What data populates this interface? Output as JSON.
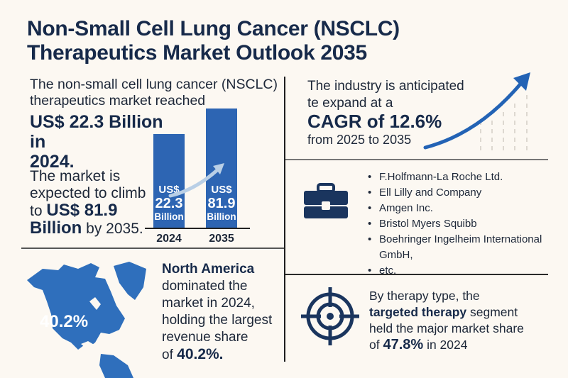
{
  "title": {
    "line1": "Non-Small Cell Lung Cancer (NSCLC)",
    "line2": "Therapeutics Market Outlook 2035"
  },
  "market_size": {
    "intro_line1": "The non-small cell lung cancer (NSCLC)",
    "intro_line2": "therapeutics market reached",
    "value_line1": "US$ 22.3 Billion in",
    "value_line2": "2024.",
    "climb_line1": "The market is",
    "climb_line2": "expected to climb",
    "climb_to": "to",
    "climb_value": "US$ 81.9",
    "climb_billion": "Billion",
    "climb_suffix": "by 2035."
  },
  "chart_data": {
    "type": "bar",
    "categories": [
      "2024",
      "2035"
    ],
    "values": [
      22.3,
      81.9
    ],
    "unit": "US$ Billion",
    "bar_labels": [
      {
        "currency": "US$",
        "value": "22.3",
        "unit": "Billion"
      },
      {
        "currency": "US$",
        "value": "81.9",
        "unit": "Billion"
      }
    ],
    "colors": {
      "bar": "#2d65b3",
      "arrow": "#b9cfe6"
    },
    "title": "",
    "xlabel": "",
    "ylabel": ""
  },
  "cagr": {
    "line1": "The industry is anticipated",
    "line2": "te expand at a",
    "headline": "CAGR of 12.6%",
    "period": "from 2025 to 2035",
    "value_percent": 12.6
  },
  "companies": {
    "icon": "briefcase-icon",
    "items": [
      "F.Holfmann-La Roche Ltd.",
      "Ell Lilly and Company",
      "Amgen Inc.",
      "Bristol Myers Squibb",
      "Boehringer Ingelheim International GmbH,",
      "etc."
    ]
  },
  "region": {
    "map_label": "40.2%",
    "line1": "North America",
    "line2": "dominated the",
    "line3": "market in 2024,",
    "line4": "holding the largest",
    "line5": "revenue share",
    "line6_prefix": "of",
    "line6_value": "40.2%."
  },
  "therapy": {
    "icon": "target-icon",
    "line1": "By therapy type, the",
    "line2_bold": "targeted therapy",
    "line2_rest": "segment",
    "line3": "held the major market share",
    "line4_prefix": "of",
    "line4_value": "47.8%",
    "line4_suffix": "in 2024"
  },
  "colors": {
    "background": "#fcf8f2",
    "title": "#172a4a",
    "accent_blue": "#2d65b3",
    "icon_navy": "#1a355e"
  }
}
